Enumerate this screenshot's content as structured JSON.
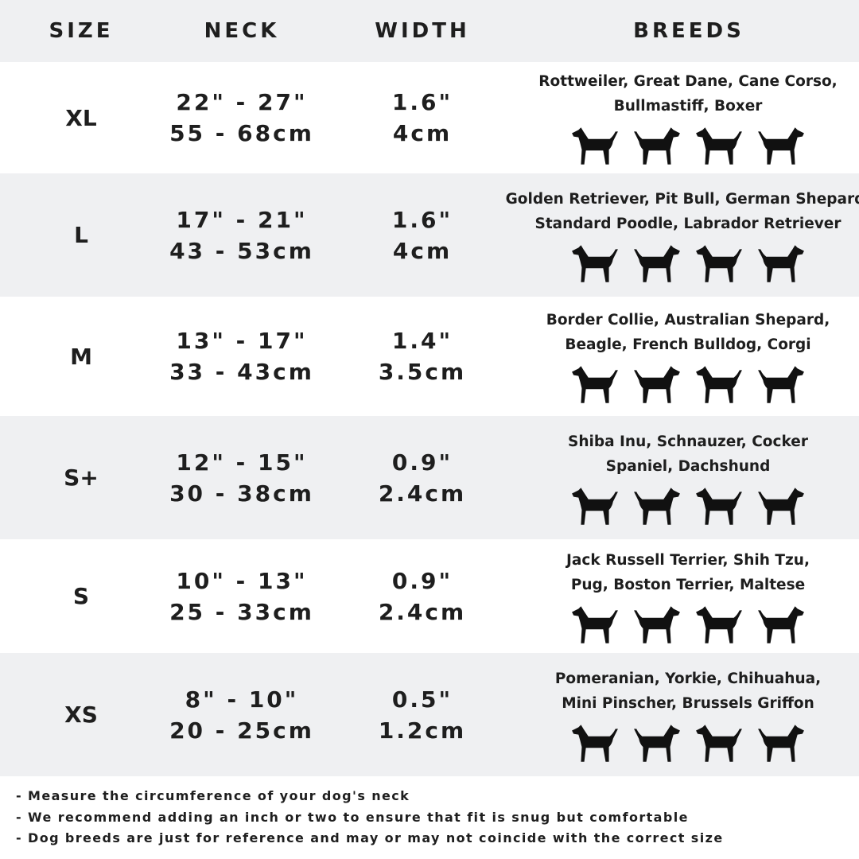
{
  "header": {
    "size": "SIZE",
    "neck": "NECK",
    "width": "WIDTH",
    "breeds": "BREEDS"
  },
  "colors": {
    "band": "#eff0f2",
    "text": "#1e1e1e"
  },
  "rows": [
    {
      "size": "XL",
      "neck_in": "22\" - 27\"",
      "neck_cm": "55 - 68cm",
      "width_in": "1.6\"",
      "width_cm": "4cm",
      "breeds": [
        "Rottweiler, Great Dane, Cane Corso,",
        "Bullmastiff, Boxer"
      ],
      "icons": [
        "rottweiler-icon",
        "great-dane-icon",
        "cane-corso-icon",
        "bullmastiff-icon"
      ]
    },
    {
      "size": "L",
      "neck_in": "17\" - 21\"",
      "neck_cm": "43 - 53cm",
      "width_in": "1.6\"",
      "width_cm": "4cm",
      "breeds": [
        "Golden Retriever, Pit Bull, German Shepard,",
        "Standard Poodle, Labrador Retriever"
      ],
      "icons": [
        "golden-retriever-icon",
        "labrador-icon",
        "poodle-icon",
        "german-shepherd-icon"
      ]
    },
    {
      "size": "M",
      "neck_in": "13\" - 17\"",
      "neck_cm": "33 - 43cm",
      "width_in": "1.4\"",
      "width_cm": "3.5cm",
      "breeds": [
        "Border Collie, Australian Shepard,",
        "Beagle, French Bulldog, Corgi"
      ],
      "icons": [
        "border-collie-icon",
        "beagle-icon",
        "french-bulldog-icon",
        "corgi-icon"
      ]
    },
    {
      "size": "S+",
      "neck_in": "12\" - 15\"",
      "neck_cm": "30 - 38cm",
      "width_in": "0.9\"",
      "width_cm": "2.4cm",
      "breeds": [
        "Shiba Inu, Schnauzer, Cocker",
        "Spaniel, Dachshund"
      ],
      "icons": [
        "shiba-inu-icon",
        "schnauzer-icon",
        "cocker-spaniel-icon",
        "dachshund-icon"
      ]
    },
    {
      "size": "S",
      "neck_in": "10\" - 13\"",
      "neck_cm": "25 - 33cm",
      "width_in": "0.9\"",
      "width_cm": "2.4cm",
      "breeds": [
        "Jack Russell Terrier, Shih Tzu,",
        "Pug, Boston Terrier, Maltese"
      ],
      "icons": [
        "jack-russell-icon",
        "shih-tzu-icon",
        "pug-icon",
        "maltese-icon"
      ]
    },
    {
      "size": "XS",
      "neck_in": "8\" - 10\"",
      "neck_cm": "20 - 25cm",
      "width_in": "0.5\"",
      "width_cm": "1.2cm",
      "breeds": [
        "Pomeranian, Yorkie, Chihuahua,",
        "Mini Pinscher, Brussels Griffon"
      ],
      "icons": [
        "pomeranian-icon",
        "yorkie-icon",
        "chihuahua-icon",
        "mini-pinscher-icon"
      ]
    }
  ],
  "notes": [
    "- Measure the circumference of your dog's neck",
    "- We recommend adding an inch or two to ensure that fit is snug but comfortable",
    "- Dog breeds are just for reference and may or may not coincide with the correct size"
  ]
}
